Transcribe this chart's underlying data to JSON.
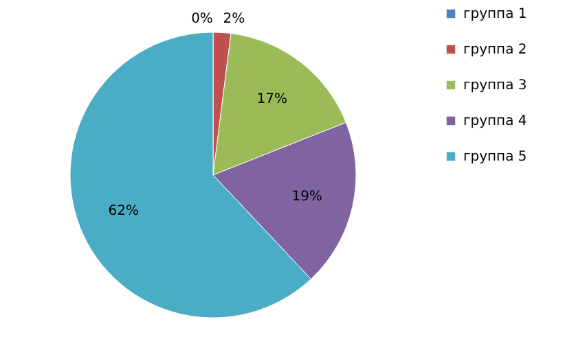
{
  "chart_data": {
    "type": "pie",
    "categories": [
      "группа 1",
      "группа 2",
      "группа 3",
      "группа 4",
      "группа 5"
    ],
    "values": [
      0,
      2,
      17,
      19,
      62
    ],
    "colors": [
      "#4f81bd",
      "#c0504d",
      "#9bbb59",
      "#8064a2",
      "#4bacc6"
    ],
    "value_labels": [
      "0%",
      "2%",
      "17%",
      "19%",
      "62%"
    ],
    "legend": "right"
  }
}
